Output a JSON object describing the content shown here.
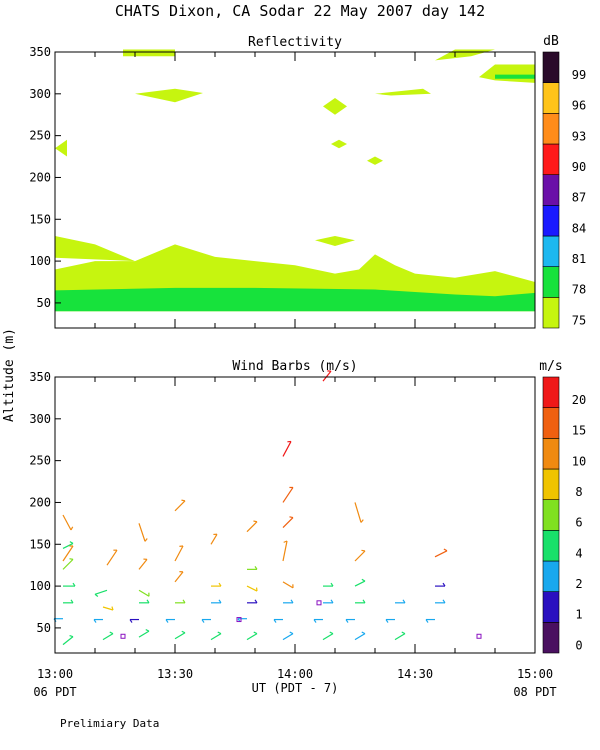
{
  "title": "CHATS Dixon, CA  Sodar  22 May 2007  day 142",
  "shared": {
    "ylabel": "Altitude (m)",
    "xlabel": "UT  (PDT - 7)",
    "x_ticks": [
      "13:00",
      "13:30",
      "14:00",
      "14:30",
      "15:00"
    ],
    "x_left_sub": "06 PDT",
    "x_right_sub": "08 PDT",
    "footnote": "Prelimiary Data"
  },
  "colors": {
    "reflect": [
      "#c6f50f",
      "#17e23c",
      "#1db8f0",
      "#1a1aff",
      "#6a0fa8",
      "#ff1a1a",
      "#ff8c1a",
      "#ffc41a",
      "#2a0a2a"
    ],
    "wind": [
      "#4a1060",
      "#2a10c0",
      "#18a8ee",
      "#18e06a",
      "#80e020",
      "#f0c400",
      "#f08a10",
      "#f06010",
      "#f01818"
    ]
  },
  "chart_data": [
    {
      "type": "area",
      "title": "Reflectivity",
      "colorbar_unit": "dB",
      "colorbar_labels": [
        "99",
        "96",
        "93",
        "90",
        "87",
        "84",
        "81",
        "78",
        "75"
      ],
      "xlim": [
        0,
        120
      ],
      "ylim": [
        20,
        350
      ],
      "y_ticks": [
        "350",
        "300",
        "250",
        "200",
        "150",
        "100",
        "50"
      ],
      "y_values": [
        350,
        300,
        250,
        200,
        150,
        100,
        50
      ],
      "regions": [
        {
          "level": 0,
          "points": [
            [
              0,
              90
            ],
            [
              10,
              100
            ],
            [
              20,
              100
            ],
            [
              30,
              120
            ],
            [
              40,
              105
            ],
            [
              50,
              100
            ],
            [
              60,
              95
            ],
            [
              70,
              85
            ],
            [
              76,
              90
            ],
            [
              80,
              108
            ],
            [
              85,
              95
            ],
            [
              90,
              85
            ],
            [
              100,
              80
            ],
            [
              110,
              88
            ],
            [
              120,
              75
            ],
            [
              120,
              40
            ],
            [
              0,
              40
            ]
          ]
        },
        {
          "level": 0,
          "points": [
            [
              0,
              130
            ],
            [
              10,
              120
            ],
            [
              20,
              100
            ],
            [
              0,
              104
            ]
          ]
        },
        {
          "level": 0,
          "points": [
            [
              0,
              235
            ],
            [
              3,
              245
            ],
            [
              3,
              225
            ]
          ]
        },
        {
          "level": 0,
          "points": [
            [
              17,
              345
            ],
            [
              30,
              345
            ],
            [
              30,
              353
            ],
            [
              17,
              353
            ]
          ]
        },
        {
          "level": 0,
          "points": [
            [
              20,
              300
            ],
            [
              30,
              306
            ],
            [
              37,
              301
            ],
            [
              30,
              290
            ]
          ]
        },
        {
          "level": 0,
          "points": [
            [
              67,
              285
            ],
            [
              70,
              295
            ],
            [
              73,
              285
            ],
            [
              70,
              275
            ]
          ]
        },
        {
          "level": 0,
          "points": [
            [
              69,
              240
            ],
            [
              71,
              245
            ],
            [
              73,
              240
            ],
            [
              71,
              235
            ]
          ]
        },
        {
          "level": 0,
          "points": [
            [
              78,
              220
            ],
            [
              80,
              225
            ],
            [
              82,
              220
            ],
            [
              80,
              215
            ]
          ]
        },
        {
          "level": 0,
          "points": [
            [
              65,
              125
            ],
            [
              70,
              130
            ],
            [
              75,
              125
            ],
            [
              70,
              118
            ]
          ]
        },
        {
          "level": 0,
          "points": [
            [
              80,
              300
            ],
            [
              92,
              306
            ],
            [
              94,
              300
            ],
            [
              84,
              298
            ]
          ]
        },
        {
          "level": 0,
          "points": [
            [
              95,
              340
            ],
            [
              100,
              353
            ],
            [
              110,
              353
            ],
            [
              104,
              345
            ]
          ]
        },
        {
          "level": 0,
          "points": [
            [
              106,
              320
            ],
            [
              110,
              335
            ],
            [
              120,
              335
            ],
            [
              120,
              313
            ],
            [
              110,
              316
            ]
          ]
        },
        {
          "level": 1,
          "points": [
            [
              0,
              65
            ],
            [
              30,
              68
            ],
            [
              50,
              68
            ],
            [
              80,
              66
            ],
            [
              100,
              60
            ],
            [
              110,
              58
            ],
            [
              120,
              62
            ],
            [
              120,
              40
            ],
            [
              0,
              40
            ]
          ]
        },
        {
          "level": 1,
          "points": [
            [
              110,
              318
            ],
            [
              110,
              323
            ],
            [
              120,
              323
            ],
            [
              120,
              318
            ]
          ]
        }
      ]
    },
    {
      "type": "scatter",
      "title": "Wind Barbs (m/s)",
      "colorbar_unit": "m/s",
      "colorbar_labels": [
        "20",
        "15",
        "10",
        "8",
        "6",
        "4",
        "2",
        "1",
        "0"
      ],
      "xlim": [
        0,
        120
      ],
      "ylim": [
        20,
        350
      ],
      "y_ticks": [
        "350",
        "300",
        "250",
        "200",
        "150",
        "100",
        "50"
      ],
      "y_values": [
        350,
        300,
        250,
        200,
        150,
        100,
        50
      ],
      "barbs": [
        {
          "t": 2,
          "z": 30,
          "dx": 10,
          "dy": -8,
          "lev": 3
        },
        {
          "t": 2,
          "z": 61,
          "dx": -9,
          "dy": 0,
          "lev": 2
        },
        {
          "t": 2,
          "z": 80,
          "dx": 10,
          "dy": 0,
          "lev": 3
        },
        {
          "t": 2,
          "z": 100,
          "dx": 12,
          "dy": 0,
          "lev": 3
        },
        {
          "t": 2,
          "z": 120,
          "dx": 10,
          "dy": -10,
          "lev": 4
        },
        {
          "t": 2,
          "z": 145,
          "dx": 10,
          "dy": -5,
          "lev": 3
        },
        {
          "t": 2,
          "z": 130,
          "dx": 10,
          "dy": -15,
          "lev": 6
        },
        {
          "t": 2,
          "z": 185,
          "dx": 8,
          "dy": 15,
          "lev": 6
        },
        {
          "t": 12,
          "z": 36,
          "dx": 10,
          "dy": -6,
          "lev": 3
        },
        {
          "t": 12,
          "z": 60,
          "dx": -9,
          "dy": 0,
          "lev": 2
        },
        {
          "t": 12,
          "z": 75,
          "dx": 10,
          "dy": 3,
          "lev": 5
        },
        {
          "t": 13,
          "z": 95,
          "dx": -12,
          "dy": 4,
          "lev": 3
        },
        {
          "t": 13,
          "z": 125,
          "dx": 10,
          "dy": -15,
          "lev": 6
        },
        {
          "t": 21,
          "z": 39,
          "dx": 10,
          "dy": -6,
          "lev": 3
        },
        {
          "t": 21,
          "z": 60,
          "dx": -9,
          "dy": 0,
          "lev": 1
        },
        {
          "t": 21,
          "z": 80,
          "dx": 10,
          "dy": 0,
          "lev": 3
        },
        {
          "t": 21,
          "z": 95,
          "dx": 10,
          "dy": 6,
          "lev": 4
        },
        {
          "t": 21,
          "z": 120,
          "dx": 8,
          "dy": -10,
          "lev": 6
        },
        {
          "t": 21,
          "z": 175,
          "dx": 6,
          "dy": 18,
          "lev": 6
        },
        {
          "t": 30,
          "z": 37,
          "dx": 10,
          "dy": -6,
          "lev": 3
        },
        {
          "t": 30,
          "z": 60,
          "dx": -9,
          "dy": 0,
          "lev": 2
        },
        {
          "t": 30,
          "z": 80,
          "dx": 10,
          "dy": 0,
          "lev": 4
        },
        {
          "t": 30,
          "z": 105,
          "dx": 8,
          "dy": -10,
          "lev": 6
        },
        {
          "t": 30,
          "z": 130,
          "dx": 8,
          "dy": -15,
          "lev": 6
        },
        {
          "t": 30,
          "z": 190,
          "dx": 10,
          "dy": -10,
          "lev": 6
        },
        {
          "t": 39,
          "z": 36,
          "dx": 10,
          "dy": -6,
          "lev": 3
        },
        {
          "t": 39,
          "z": 60,
          "dx": -9,
          "dy": 0,
          "lev": 2
        },
        {
          "t": 39,
          "z": 80,
          "dx": 10,
          "dy": 0,
          "lev": 2
        },
        {
          "t": 39,
          "z": 100,
          "dx": 10,
          "dy": 0,
          "lev": 5
        },
        {
          "t": 39,
          "z": 150,
          "dx": 6,
          "dy": -10,
          "lev": 6
        },
        {
          "t": 48,
          "z": 36,
          "dx": 10,
          "dy": -6,
          "lev": 3
        },
        {
          "t": 48,
          "z": 61,
          "dx": -9,
          "dy": 0,
          "lev": 2
        },
        {
          "t": 48,
          "z": 80,
          "dx": 10,
          "dy": 0,
          "lev": 1
        },
        {
          "t": 48,
          "z": 100,
          "dx": 10,
          "dy": 5,
          "lev": 5
        },
        {
          "t": 48,
          "z": 120,
          "dx": 10,
          "dy": 0,
          "lev": 4
        },
        {
          "t": 48,
          "z": 165,
          "dx": 10,
          "dy": -10,
          "lev": 6
        },
        {
          "t": 57,
          "z": 36,
          "dx": 10,
          "dy": -6,
          "lev": 2
        },
        {
          "t": 57,
          "z": 60,
          "dx": -9,
          "dy": 0,
          "lev": 2
        },
        {
          "t": 57,
          "z": 80,
          "dx": 10,
          "dy": 0,
          "lev": 2
        },
        {
          "t": 57,
          "z": 105,
          "dx": 10,
          "dy": 6,
          "lev": 6
        },
        {
          "t": 57,
          "z": 130,
          "dx": 4,
          "dy": -20,
          "lev": 6
        },
        {
          "t": 57,
          "z": 170,
          "dx": 10,
          "dy": -10,
          "lev": 7
        },
        {
          "t": 57,
          "z": 200,
          "dx": 10,
          "dy": -15,
          "lev": 7
        },
        {
          "t": 57,
          "z": 255,
          "dx": 8,
          "dy": -15,
          "lev": 8
        },
        {
          "t": 67,
          "z": 36,
          "dx": 10,
          "dy": -6,
          "lev": 3
        },
        {
          "t": 67,
          "z": 60,
          "dx": -9,
          "dy": 0,
          "lev": 2
        },
        {
          "t": 67,
          "z": 80,
          "dx": 10,
          "dy": 0,
          "lev": 2
        },
        {
          "t": 67,
          "z": 100,
          "dx": 10,
          "dy": 0,
          "lev": 3
        },
        {
          "t": 67,
          "z": 345,
          "dx": 8,
          "dy": -10,
          "lev": 8
        },
        {
          "t": 75,
          "z": 36,
          "dx": 10,
          "dy": -6,
          "lev": 2
        },
        {
          "t": 75,
          "z": 60,
          "dx": -9,
          "dy": 0,
          "lev": 2
        },
        {
          "t": 75,
          "z": 80,
          "dx": 10,
          "dy": 0,
          "lev": 3
        },
        {
          "t": 75,
          "z": 100,
          "dx": 10,
          "dy": -5,
          "lev": 3
        },
        {
          "t": 75,
          "z": 130,
          "dx": 10,
          "dy": -10,
          "lev": 6
        },
        {
          "t": 75,
          "z": 200,
          "dx": 6,
          "dy": 20,
          "lev": 6
        },
        {
          "t": 85,
          "z": 36,
          "dx": 10,
          "dy": -6,
          "lev": 3
        },
        {
          "t": 85,
          "z": 60,
          "dx": -9,
          "dy": 0,
          "lev": 2
        },
        {
          "t": 85,
          "z": 80,
          "dx": 10,
          "dy": 0,
          "lev": 2
        },
        {
          "t": 95,
          "z": 60,
          "dx": -9,
          "dy": 0,
          "lev": 2
        },
        {
          "t": 95,
          "z": 80,
          "dx": 10,
          "dy": 0,
          "lev": 2
        },
        {
          "t": 95,
          "z": 100,
          "dx": 10,
          "dy": 0,
          "lev": 1
        },
        {
          "t": 95,
          "z": 135,
          "dx": 12,
          "dy": -6,
          "lev": 7
        }
      ],
      "squares": [
        {
          "t": 17,
          "z": 40,
          "lev": 0
        },
        {
          "t": 46,
          "z": 60,
          "lev": 0
        },
        {
          "t": 66,
          "z": 80,
          "lev": 0
        },
        {
          "t": 106,
          "z": 40,
          "lev": 0
        }
      ]
    }
  ]
}
